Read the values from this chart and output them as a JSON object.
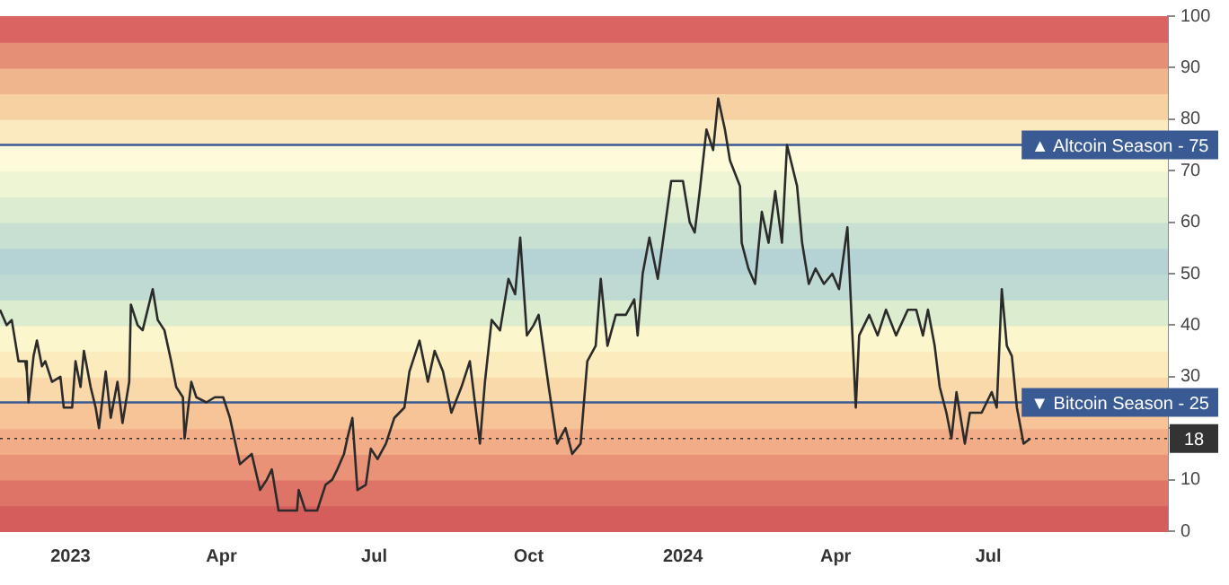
{
  "chart_data": {
    "type": "line",
    "x": [
      "2022-11-20",
      "2022-11-24",
      "2022-11-27",
      "2022-12-01",
      "2022-12-05",
      "2022-12-06",
      "2022-12-07",
      "2022-12-10",
      "2022-12-12",
      "2022-12-15",
      "2022-12-17",
      "2022-12-21",
      "2022-12-26",
      "2022-12-28",
      "2023-01-02",
      "2023-01-04",
      "2023-01-07",
      "2023-01-09",
      "2023-01-13",
      "2023-01-16",
      "2023-01-18",
      "2023-01-22",
      "2023-01-25",
      "2023-01-29",
      "2023-02-01",
      "2023-02-05",
      "2023-02-06",
      "2023-02-10",
      "2023-02-13",
      "2023-02-19",
      "2023-02-22",
      "2023-02-26",
      "2023-03-02",
      "2023-03-05",
      "2023-03-09",
      "2023-03-10",
      "2023-03-14",
      "2023-03-17",
      "2023-03-23",
      "2023-03-28",
      "2023-04-02",
      "2023-04-06",
      "2023-04-12",
      "2023-04-19",
      "2023-04-24",
      "2023-04-28",
      "2023-05-01",
      "2023-05-05",
      "2023-05-16",
      "2023-05-17",
      "2023-05-21",
      "2023-05-28",
      "2023-06-02",
      "2023-06-06",
      "2023-06-09",
      "2023-06-13",
      "2023-06-15",
      "2023-06-18",
      "2023-06-21",
      "2023-06-26",
      "2023-06-29",
      "2023-07-03",
      "2023-07-08",
      "2023-07-13",
      "2023-07-19",
      "2023-07-22",
      "2023-07-28",
      "2023-08-02",
      "2023-08-06",
      "2023-08-11",
      "2023-08-16",
      "2023-08-22",
      "2023-08-27",
      "2023-09-02",
      "2023-09-05",
      "2023-09-09",
      "2023-09-14",
      "2023-09-19",
      "2023-09-23",
      "2023-09-26",
      "2023-09-30",
      "2023-10-04",
      "2023-10-07",
      "2023-10-13",
      "2023-10-18",
      "2023-10-23",
      "2023-10-27",
      "2023-11-01",
      "2023-11-05",
      "2023-11-10",
      "2023-11-13",
      "2023-11-17",
      "2023-11-22",
      "2023-11-28",
      "2023-12-03",
      "2023-12-05",
      "2023-12-08",
      "2023-12-12",
      "2023-12-17",
      "2023-12-25",
      "2024-01-01",
      "2024-01-05",
      "2024-01-08",
      "2024-01-11",
      "2024-01-15",
      "2024-01-19",
      "2024-01-22",
      "2024-01-26",
      "2024-01-29",
      "2024-02-04",
      "2024-02-05",
      "2024-02-09",
      "2024-02-13",
      "2024-02-17",
      "2024-02-21",
      "2024-02-25",
      "2024-02-29",
      "2024-03-03",
      "2024-03-09",
      "2024-03-12",
      "2024-03-16",
      "2024-03-20",
      "2024-03-25",
      "2024-03-30",
      "2024-04-03",
      "2024-04-08",
      "2024-04-10",
      "2024-04-13",
      "2024-04-15",
      "2024-04-21",
      "2024-04-26",
      "2024-05-01",
      "2024-05-07",
      "2024-05-14",
      "2024-05-19",
      "2024-05-23",
      "2024-05-26",
      "2024-05-30",
      "2024-06-02",
      "2024-06-06",
      "2024-06-09",
      "2024-06-12",
      "2024-06-17",
      "2024-06-20",
      "2024-06-27",
      "2024-07-03",
      "2024-07-06",
      "2024-07-09",
      "2024-07-12",
      "2024-07-15",
      "2024-07-18",
      "2024-07-22",
      "2024-07-26"
    ],
    "series": [
      {
        "color": "#2b2b2b",
        "values": [
          43,
          40,
          41,
          33,
          33,
          31,
          25,
          34,
          37,
          32,
          33,
          29,
          30,
          24,
          24,
          33,
          28,
          35,
          28,
          24,
          20,
          31,
          22,
          29,
          21,
          29,
          44,
          40,
          39,
          47,
          41,
          39,
          33,
          28,
          26,
          18,
          29,
          26,
          25,
          26,
          26,
          22,
          13,
          15,
          8,
          10,
          12,
          4,
          4,
          8,
          4,
          4,
          9,
          10,
          12,
          15,
          18,
          22,
          8,
          9,
          16,
          14,
          17,
          22,
          24,
          31,
          37,
          29,
          35,
          31,
          23,
          28,
          33,
          17,
          29,
          41,
          39,
          49,
          46,
          57,
          38,
          40,
          42,
          28,
          17,
          20,
          15,
          17,
          33,
          36,
          49,
          36,
          42,
          42,
          45,
          38,
          50,
          57,
          49,
          68,
          68,
          60,
          58,
          66,
          78,
          74,
          84,
          78,
          72,
          67,
          56,
          51,
          48,
          62,
          56,
          66,
          56,
          75,
          67,
          56,
          48,
          51,
          48,
          50,
          47,
          59,
          45,
          24,
          38,
          42,
          38,
          43,
          38,
          43,
          43,
          38,
          43,
          36,
          28,
          23,
          18,
          27,
          17,
          23,
          23,
          27,
          24,
          47,
          36,
          34,
          24,
          17,
          18
        ]
      }
    ],
    "xlim": [
      "2022-11-20",
      "2024-10-16"
    ],
    "xticks": [
      {
        "value": "2023-01-01",
        "label": "2023"
      },
      {
        "value": "2023-04-01",
        "label": "Apr"
      },
      {
        "value": "2023-07-01",
        "label": "Jul"
      },
      {
        "value": "2023-10-01",
        "label": "Oct"
      },
      {
        "value": "2024-01-01",
        "label": "2024"
      },
      {
        "value": "2024-04-01",
        "label": "Apr"
      },
      {
        "value": "2024-07-01",
        "label": "Jul"
      }
    ],
    "ylim": [
      0,
      100
    ],
    "yticks": [
      0,
      10,
      {
        "value": 20,
        "label": null
      },
      30,
      40,
      50,
      60,
      70,
      80,
      90,
      100
    ],
    "ref_lines": [
      {
        "axis": "y",
        "value": 75,
        "label": "▲ Altcoin Season - 75",
        "color": "#3a5a94"
      },
      {
        "axis": "y",
        "value": 25,
        "label": "▼ Bitcoin Season - 25",
        "color": "#3a5a94"
      },
      {
        "axis": "y",
        "value": 18,
        "label": "18",
        "color": "#333333",
        "line_style": "dotted"
      }
    ],
    "bands": [
      {
        "axis": "y",
        "from": 0,
        "to": 5,
        "color": "#d55e5c"
      },
      {
        "axis": "y",
        "from": 5,
        "to": 10,
        "color": "#de7467"
      },
      {
        "axis": "y",
        "from": 10,
        "to": 15,
        "color": "#ea9278"
      },
      {
        "axis": "y",
        "from": 15,
        "to": 20,
        "color": "#f2ad88"
      },
      {
        "axis": "y",
        "from": 20,
        "to": 25,
        "color": "#f6c497"
      },
      {
        "axis": "y",
        "from": 25,
        "to": 30,
        "color": "#f9d9aa"
      },
      {
        "axis": "y",
        "from": 30,
        "to": 35,
        "color": "#fcecbd"
      },
      {
        "axis": "y",
        "from": 35,
        "to": 40,
        "color": "#fbf6cc"
      },
      {
        "axis": "y",
        "from": 40,
        "to": 45,
        "color": "#dcecce"
      },
      {
        "axis": "y",
        "from": 45,
        "to": 50,
        "color": "#bfdad2"
      },
      {
        "axis": "y",
        "from": 50,
        "to": 55,
        "color": "#b5d2d5"
      },
      {
        "axis": "y",
        "from": 55,
        "to": 60,
        "color": "#c8e0d1"
      },
      {
        "axis": "y",
        "from": 60,
        "to": 65,
        "color": "#dcecd0"
      },
      {
        "axis": "y",
        "from": 65,
        "to": 70,
        "color": "#eef5d4"
      },
      {
        "axis": "y",
        "from": 70,
        "to": 75,
        "color": "#fdfbd9"
      },
      {
        "axis": "y",
        "from": 75,
        "to": 80,
        "color": "#fbeabf"
      },
      {
        "axis": "y",
        "from": 80,
        "to": 85,
        "color": "#f6d2a2"
      },
      {
        "axis": "y",
        "from": 85,
        "to": 90,
        "color": "#efb58c"
      },
      {
        "axis": "y",
        "from": 90,
        "to": 95,
        "color": "#e58f77"
      },
      {
        "axis": "y",
        "from": 95,
        "to": 100,
        "color": "#d96461"
      }
    ],
    "grid": false,
    "legend": false,
    "marker": "none",
    "line_style": "solid"
  }
}
